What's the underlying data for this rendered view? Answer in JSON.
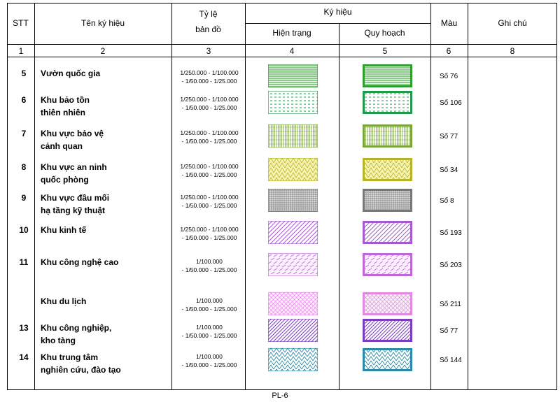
{
  "header": {
    "stt": "STT",
    "name": "Tên ký hiệu",
    "scale_line1": "Tỷ lệ",
    "scale_line2": "bản đồ",
    "symbol": "Ký hiệu",
    "current": "Hiện trạng",
    "planning": "Quy hoạch",
    "color": "Màu",
    "note": "Ghi chú"
  },
  "column_numbers": [
    "1",
    "2",
    "3",
    "4",
    "5",
    "6",
    "8"
  ],
  "rows": [
    {
      "stt": "5",
      "name1": "Vườn quốc gia",
      "name2": "",
      "scale1": "1/250.000 - 1/100.000",
      "scale2": "- 1/50.000 - 1/25.000",
      "color": "Số 76",
      "pattern": "hstripes",
      "stroke": "#2e9e2e",
      "fill": "#eaf6ea"
    },
    {
      "stt": "6",
      "name1": "Khu bảo tồn",
      "name2": "thiên nhiên",
      "scale1": "1/250.000 - 1/100.000",
      "scale2": "- 1/50.000 - 1/25.000",
      "color": "Số 106",
      "pattern": "dash",
      "stroke": "#1e9a4a",
      "fill": "#ffffff"
    },
    {
      "stt": "7",
      "name1": "Khu vực bảo vệ",
      "name2": " cảnh quan",
      "scale1": "1/250.000 - 1/100.000",
      "scale2": "- 1/50.000 - 1/25.000",
      "color": "Số 77",
      "pattern": "vstripes",
      "stroke": "#7aa53a",
      "fill": "#ffffff"
    },
    {
      "stt": "8",
      "name1": "Khu vực an ninh",
      "name2": "quốc phòng",
      "scale1": "1/250.000 - 1/100.000",
      "scale2": "- 1/50.000 - 1/25.000",
      "color": "Số 34",
      "pattern": "triangles",
      "stroke": "#b7b42a",
      "fill": "#f7f3b0"
    },
    {
      "stt": "9",
      "name1": "Khu vực đầu mối",
      "name2": "hạ tầng kỹ thuật",
      "scale1": "1/250.000 - 1/100.000",
      "scale2": "- 1/50.000 - 1/25.000",
      "color": "Số 8",
      "pattern": "grid",
      "stroke": "#777777",
      "fill": "#e6e6e6"
    },
    {
      "stt": "10",
      "name1": "Khu kinh tế",
      "name2": "",
      "scale1": "1/250.000 - 1/100.000",
      "scale2": "- 1/50.000 - 1/25.000",
      "color": "Số 193",
      "pattern": "diag",
      "stroke": "#a45ad0",
      "fill": "#ffffff"
    },
    {
      "stt": "11",
      "name1": "Khu công nghệ cao",
      "name2": "",
      "scale1": "1/100.000",
      "scale2": "- 1/50.000 - 1/25.000",
      "color": "Số 203",
      "pattern": "dashdiag",
      "stroke": "#c067d8",
      "fill": "#fbf0fd"
    },
    {
      "stt": "",
      "name1": "Khu du lịch",
      "name2": "",
      "scale1": "1/100.000",
      "scale2": "- 1/50.000 - 1/25.000",
      "color": "Số 211",
      "pattern": "cross",
      "stroke": "#e28ae2",
      "fill": "#fdf0fc"
    },
    {
      "stt": "13",
      "name1": "Khu công nghiệp,",
      "name2": "kho tàng",
      "scale1": "1/100.000",
      "scale2": "- 1/50.000 - 1/25.000",
      "color": "Số 77",
      "pattern": "diag2",
      "stroke": "#7a3cc0",
      "fill": "#ffffff"
    },
    {
      "stt": "14",
      "name1": "Khu trung tâm",
      "name2": "nghiên cứu, đào tạo",
      "scale1": "1/100.000",
      "scale2": "- 1/50.000 - 1/25.000",
      "color": "Số 144",
      "pattern": "weave",
      "stroke": "#2a8aa8",
      "fill": "#ffffff"
    }
  ],
  "footer": "PL-6"
}
